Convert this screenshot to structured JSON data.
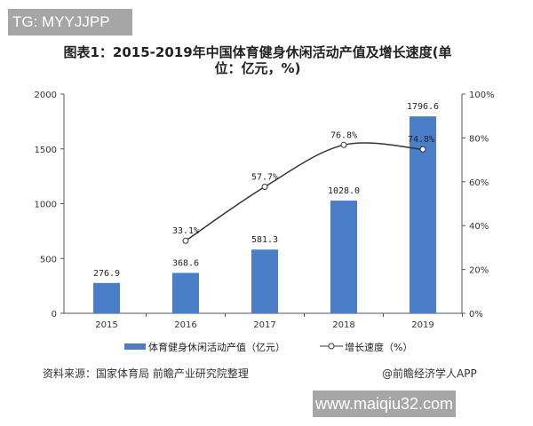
{
  "overlay_top": "TG: MYYJJPP",
  "overlay_bottom": "www.maiqiu32.com",
  "chart_data": {
    "type": "bar+line",
    "title": "图表1：2015-2019年中国体育健身休闲活动产值及增长速度(单位：亿元，%)",
    "categories": [
      "2015",
      "2016",
      "2017",
      "2018",
      "2019"
    ],
    "series": [
      {
        "name": "体育健身休闲活动产值（亿元）",
        "type": "bar",
        "axis": "left",
        "values": [
          276.9,
          368.6,
          581.3,
          1028.0,
          1796.6
        ],
        "labels": [
          "276.9",
          "368.6",
          "581.3",
          "1028.0",
          "1796.6"
        ],
        "color": "#4a7fc8"
      },
      {
        "name": "增长速度（%）",
        "type": "line",
        "axis": "right",
        "values": [
          null,
          33.1,
          57.7,
          76.8,
          74.8
        ],
        "labels": [
          "",
          "33.1%",
          "57.7%",
          "76.8%",
          "74.8%"
        ],
        "color": "#333333"
      }
    ],
    "y_left": {
      "range": [
        0,
        2000
      ],
      "ticks": [
        "0",
        "500",
        "1000",
        "1500",
        "2000"
      ]
    },
    "y_right": {
      "range": [
        0,
        100
      ],
      "ticks": [
        "0%",
        "20%",
        "40%",
        "60%",
        "80%",
        "100%"
      ]
    },
    "legend": "bottom",
    "grid": false
  },
  "source": "资料来源：国家体育局 前瞻产业研究院整理",
  "credit": "@前瞻经济学人APP"
}
